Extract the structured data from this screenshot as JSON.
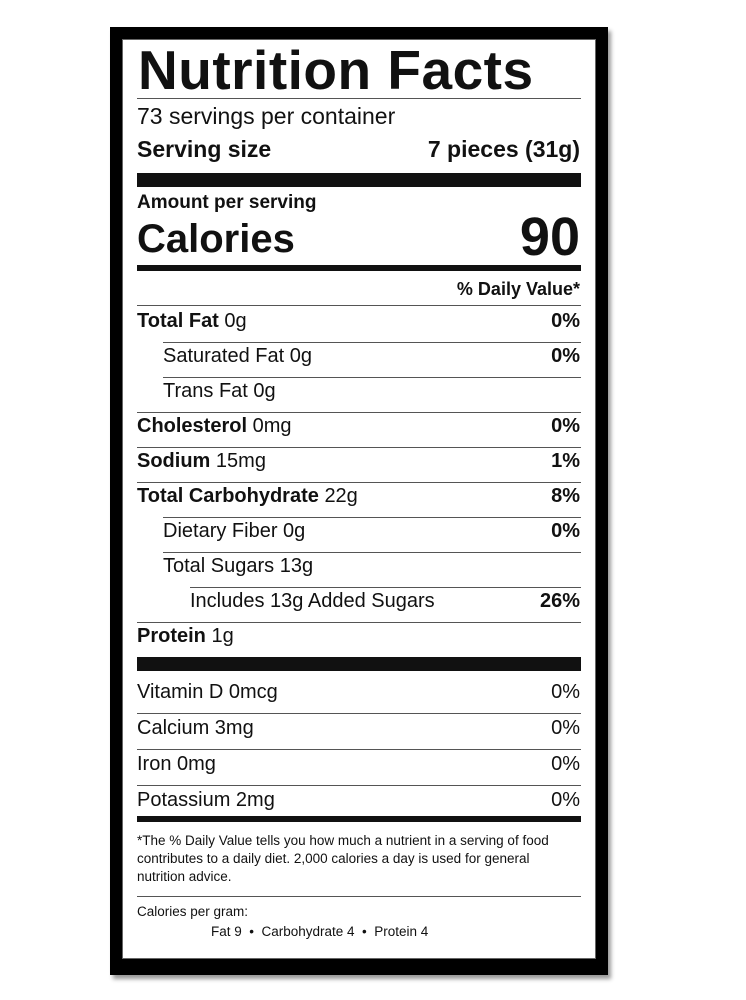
{
  "title": "Nutrition Facts",
  "servings_per_container": "73 servings per container",
  "serving_size": {
    "label": "Serving size",
    "value": "7 pieces (31g)"
  },
  "amount_per_serving": "Amount per serving",
  "calories": {
    "label": "Calories",
    "value": "90"
  },
  "daily_value_header": "% Daily Value*",
  "nutrients": [
    {
      "name": "Total Fat",
      "amount": "0g",
      "dv": "0%"
    },
    {
      "name": "Saturated Fat",
      "amount": "0g",
      "dv": "0%"
    },
    {
      "name": "Trans Fat",
      "amount": "0g",
      "dv": ""
    },
    {
      "name": "Cholesterol",
      "amount": "0mg",
      "dv": "0%"
    },
    {
      "name": "Sodium",
      "amount": "15mg",
      "dv": "1%"
    },
    {
      "name": "Total Carbohydrate",
      "amount": "22g",
      "dv": "8%"
    },
    {
      "name": "Dietary Fiber",
      "amount": "0g",
      "dv": "0%"
    },
    {
      "name": "Total Sugars",
      "amount": "13g",
      "dv": ""
    },
    {
      "name": "Includes 13g Added Sugars",
      "amount": "",
      "dv": "26%"
    },
    {
      "name": "Protein",
      "amount": "1g",
      "dv": ""
    }
  ],
  "vitamins": [
    {
      "name": "Vitamin D 0mcg",
      "dv": "0%"
    },
    {
      "name": "Calcium 3mg",
      "dv": "0%"
    },
    {
      "name": "Iron 0mg",
      "dv": "0%"
    },
    {
      "name": "Potassium 2mg",
      "dv": "0%"
    }
  ],
  "footnote": "*The % Daily Value tells you how much a nutrient in a serving of food contributes to a daily diet. 2,000 calories a day is used for general nutrition advice.",
  "calories_per_gram": {
    "label": "Calories per gram:",
    "values": "Fat 9  •  Carbohydrate 4  •  Protein 4"
  }
}
